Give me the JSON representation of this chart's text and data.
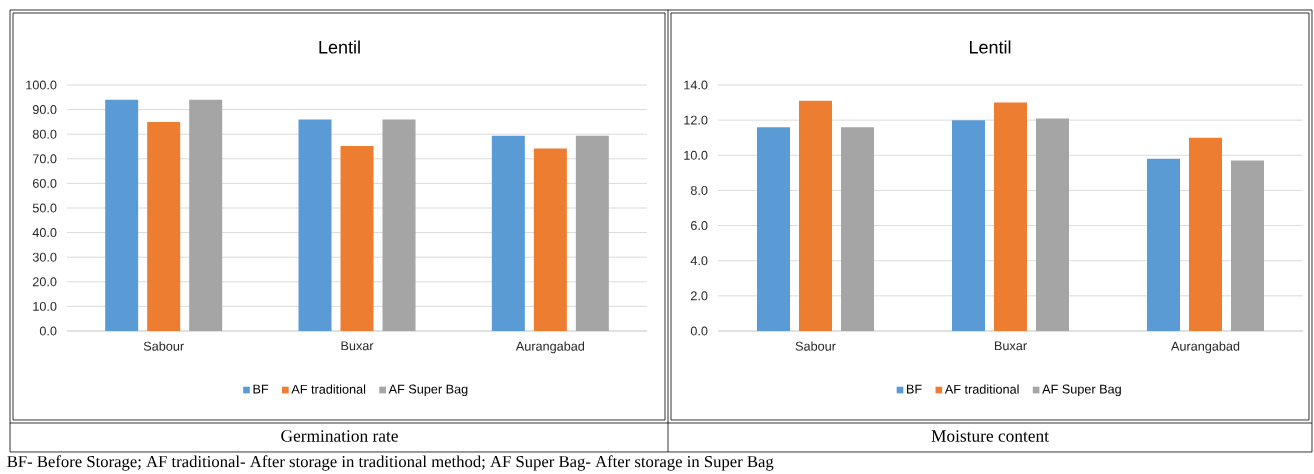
{
  "chart_data": [
    {
      "type": "bar",
      "title": "Lentil",
      "xlabel": "Germination rate",
      "categories": [
        "Sabour",
        "Buxar",
        "Aurangabad"
      ],
      "series": [
        {
          "name": "BF",
          "color": "#5b9bd5",
          "values": [
            94.0,
            86.0,
            79.4
          ]
        },
        {
          "name": "AF traditional",
          "color": "#ed7d31",
          "values": [
            85.0,
            75.2,
            74.2
          ]
        },
        {
          "name": "AF Super Bag",
          "color": "#a5a5a5",
          "values": [
            94.0,
            86.0,
            79.4
          ]
        }
      ],
      "ylim": [
        0,
        100
      ],
      "yticks": [
        {
          "value": 0,
          "label": "0.0"
        },
        {
          "value": 10,
          "label": "10.0"
        },
        {
          "value": 20,
          "label": "20.0"
        },
        {
          "value": 30,
          "label": "30.0"
        },
        {
          "value": 40,
          "label": "40.0"
        },
        {
          "value": 50,
          "label": "50.0"
        },
        {
          "value": 60,
          "label": "60.0"
        },
        {
          "value": 70,
          "label": "70.0"
        },
        {
          "value": 80,
          "label": "80.0"
        },
        {
          "value": 90,
          "label": "90.0"
        },
        {
          "value": 100,
          "label": "100.0"
        }
      ],
      "grid": "y",
      "legend": "bottom",
      "annotations": [
        "BF- Before Storage; AF traditional- After storage in traditional method; AF Super Bag- After storage in Super Bag"
      ]
    },
    {
      "type": "bar",
      "title": "Lentil",
      "xlabel": "Moisture content",
      "categories": [
        "Sabour",
        "Buxar",
        "Aurangabad"
      ],
      "series": [
        {
          "name": "BF",
          "color": "#5b9bd5",
          "values": [
            11.6,
            12.0,
            9.8
          ]
        },
        {
          "name": "AF traditional",
          "color": "#ed7d31",
          "values": [
            13.1,
            13.0,
            11.0
          ]
        },
        {
          "name": "AF Super Bag",
          "color": "#a5a5a5",
          "values": [
            11.6,
            12.1,
            9.7
          ]
        }
      ],
      "ylim": [
        0,
        14
      ],
      "yticks": [
        {
          "value": 0,
          "label": "0.0"
        },
        {
          "value": 2,
          "label": "2.0"
        },
        {
          "value": 4,
          "label": "4.0"
        },
        {
          "value": 6,
          "label": "6.0"
        },
        {
          "value": 8,
          "label": "8.0"
        },
        {
          "value": 10,
          "label": "10.0"
        },
        {
          "value": 12,
          "label": "12.0"
        },
        {
          "value": 14,
          "label": "14.0"
        }
      ],
      "grid": "y",
      "legend": "bottom"
    }
  ]
}
